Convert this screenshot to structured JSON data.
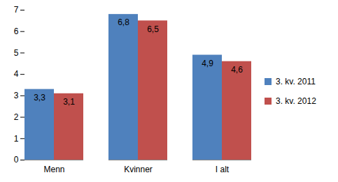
{
  "chart_data": {
    "type": "bar",
    "categories": [
      "Menn",
      "Kvinner",
      "I alt"
    ],
    "series": [
      {
        "name": "3. kv. 2011",
        "color": "#4f81bd",
        "values": [
          3.3,
          6.8,
          4.9
        ],
        "value_labels": [
          "3,3",
          "6,8",
          "4,9"
        ]
      },
      {
        "name": "3. kv. 2012",
        "color": "#c0504d",
        "values": [
          3.1,
          6.5,
          4.6
        ],
        "value_labels": [
          "3,1",
          "6,5",
          "4,6"
        ]
      }
    ],
    "ylim": [
      0,
      7
    ],
    "yticks": [
      0,
      1,
      2,
      3,
      4,
      5,
      6,
      7
    ],
    "grid": false,
    "data_labels": true,
    "legend": "right"
  }
}
